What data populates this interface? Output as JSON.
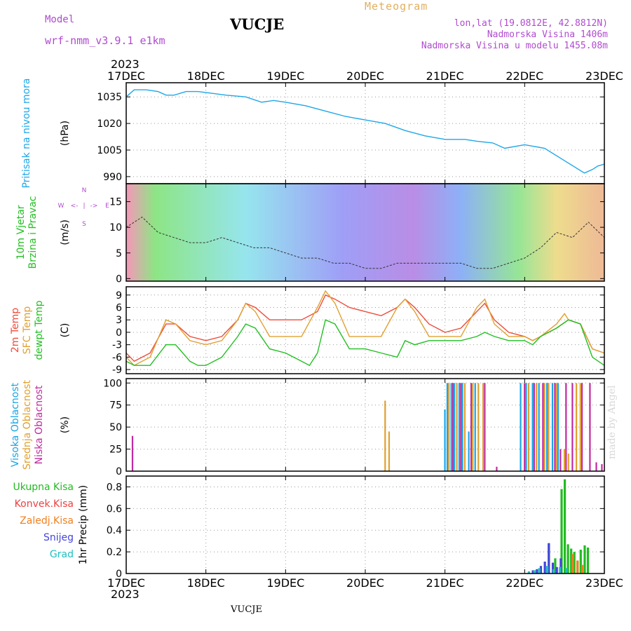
{
  "header": {
    "model_label": "Model",
    "model_name": "wrf-nmm_v3.9.1 e1km",
    "location_title": "VUCJE",
    "product": "Meteogram",
    "lonlat": "lon,lat (19.0812E, 42.8812N)",
    "elevation": "Nadmorska Visina 1406m",
    "model_elevation": "Nadmorska Visina u modelu 1455.08m",
    "year_top": "2023",
    "year_bottom": "2023",
    "footer_location": "VUCJE",
    "credit": "made by Angel"
  },
  "colors": {
    "pressure": "#1ea7e8",
    "temp2m": "#ee4b3b",
    "sfc_temp": "#e0a030",
    "dewpoint": "#22c022",
    "high_cloud": "#19a5e5",
    "mid_cloud": "#e0a030",
    "low_cloud": "#c02aa0",
    "total_precip": "#22bb22",
    "conv_precip": "#ee4040",
    "frozen_precip": "#f08020",
    "snow": "#4444dd",
    "graupel": "#20c0c0"
  },
  "chart_data": [
    {
      "id": "pressure",
      "type": "line",
      "ylabel_lines": [
        "Pritisak na nivou mora"
      ],
      "unit": "(hPa)",
      "yticks": [
        990,
        1005,
        1020,
        1035
      ],
      "ylim": [
        986,
        1043
      ],
      "x_dates": [
        "17DEC",
        "18DEC",
        "19DEC",
        "20DEC",
        "21DEC",
        "22DEC",
        "23DEC"
      ],
      "grid": true,
      "series": [
        {
          "key": "pressure",
          "x": [
            0,
            0.1,
            0.25,
            0.4,
            0.5,
            0.6,
            0.75,
            0.9,
            1.0,
            1.25,
            1.5,
            1.7,
            1.85,
            2.0,
            2.25,
            2.5,
            2.75,
            3.0,
            3.25,
            3.5,
            3.75,
            4.0,
            4.25,
            4.4,
            4.6,
            4.75,
            5.0,
            5.25,
            5.5,
            5.75,
            5.85,
            5.92,
            6.0
          ],
          "y": [
            1035,
            1039,
            1039,
            1038,
            1036,
            1036,
            1038,
            1038,
            1037.5,
            1036,
            1035,
            1032,
            1033,
            1032,
            1030,
            1027,
            1024,
            1022,
            1020,
            1016,
            1013,
            1011,
            1011,
            1010,
            1009,
            1006,
            1008,
            1006,
            999,
            992,
            994,
            996,
            997
          ]
        }
      ]
    },
    {
      "id": "wind",
      "type": "line",
      "ylabel_lines": [
        "10m Vjetar",
        "Brzina i Pravac"
      ],
      "unit": "(m/s)",
      "yticks": [
        0,
        5,
        10,
        15
      ],
      "ylim": [
        -0.5,
        18.5
      ],
      "x_dates": [
        "17DEC",
        "18DEC",
        "19DEC",
        "20DEC",
        "21DEC",
        "22DEC",
        "23DEC"
      ],
      "compass": [
        "N",
        "W",
        "<-",
        "|",
        "->",
        "E",
        "S"
      ],
      "series": [
        {
          "key": "wind_speed",
          "x": [
            0,
            0.2,
            0.4,
            0.6,
            0.8,
            1.0,
            1.2,
            1.4,
            1.6,
            1.8,
            2.0,
            2.2,
            2.4,
            2.6,
            2.8,
            3.0,
            3.2,
            3.4,
            3.6,
            3.8,
            4.0,
            4.2,
            4.4,
            4.6,
            4.8,
            5.0,
            5.2,
            5.4,
            5.6,
            5.8,
            6.0
          ],
          "y": [
            10,
            12,
            9,
            8,
            7,
            7,
            8,
            7,
            6,
            6,
            5,
            4,
            4,
            3,
            3,
            2,
            2,
            3,
            3,
            3,
            3,
            3,
            2,
            2,
            3,
            4,
            6,
            9,
            8,
            11,
            8
          ]
        }
      ]
    },
    {
      "id": "temperature",
      "type": "line",
      "ylabel_lines": [
        "2m Temp",
        "SFC Temp",
        "dewpt Temp"
      ],
      "unit": "(C)",
      "yticks": [
        -9,
        -6,
        -3,
        0,
        3,
        6,
        9
      ],
      "ylim": [
        -10,
        11
      ],
      "x_dates": [
        "17DEC",
        "18DEC",
        "19DEC",
        "20DEC",
        "21DEC",
        "22DEC",
        "23DEC"
      ],
      "grid": true,
      "series": [
        {
          "key": "temp2m",
          "x": [
            0,
            0.1,
            0.3,
            0.5,
            0.62,
            0.8,
            1.0,
            1.2,
            1.4,
            1.5,
            1.62,
            1.8,
            2.0,
            2.2,
            2.4,
            2.5,
            2.62,
            2.8,
            3.0,
            3.2,
            3.4,
            3.5,
            3.62,
            3.8,
            4.0,
            4.2,
            4.4,
            4.5,
            4.62,
            4.8,
            5.0,
            5.1,
            5.2,
            5.4,
            5.55,
            5.7,
            5.85,
            6.0
          ],
          "y": [
            -5,
            -7,
            -5,
            2,
            2,
            -1,
            -2,
            -1,
            3,
            7,
            6,
            3,
            3,
            3,
            5,
            9,
            8,
            6,
            5,
            4,
            6,
            8,
            6,
            2,
            0,
            1,
            5,
            7,
            3,
            0,
            -1,
            -2,
            -1,
            1,
            3,
            2,
            -4,
            -5
          ]
        },
        {
          "key": "sfc_temp",
          "x": [
            0,
            0.1,
            0.3,
            0.5,
            0.62,
            0.8,
            1.0,
            1.2,
            1.4,
            1.5,
            1.62,
            1.8,
            2.0,
            2.2,
            2.4,
            2.5,
            2.62,
            2.8,
            3.0,
            3.2,
            3.4,
            3.5,
            3.62,
            3.8,
            4.0,
            4.2,
            4.4,
            4.5,
            4.62,
            4.8,
            5.0,
            5.1,
            5.2,
            5.4,
            5.5,
            5.55,
            5.7,
            5.85,
            6.0
          ],
          "y": [
            -6,
            -8,
            -6,
            3,
            2,
            -2,
            -3,
            -2,
            3,
            7,
            5,
            -1,
            -1,
            -1,
            6,
            10,
            7,
            -1,
            -1,
            -1,
            6,
            8,
            5,
            -1,
            -1,
            -1,
            6,
            8,
            2,
            -1,
            -1,
            -2,
            -1,
            2,
            4.5,
            3,
            2,
            -4,
            -5
          ]
        },
        {
          "key": "dewpoint",
          "x": [
            0,
            0.1,
            0.3,
            0.5,
            0.62,
            0.8,
            0.9,
            1.0,
            1.2,
            1.4,
            1.5,
            1.62,
            1.8,
            2.0,
            2.2,
            2.3,
            2.4,
            2.5,
            2.62,
            2.8,
            3.0,
            3.2,
            3.4,
            3.5,
            3.62,
            3.8,
            4.0,
            4.2,
            4.4,
            4.5,
            4.62,
            4.8,
            5.0,
            5.1,
            5.2,
            5.4,
            5.55,
            5.7,
            5.85,
            6.0
          ],
          "y": [
            -7,
            -8,
            -8,
            -3,
            -3,
            -7,
            -8,
            -8,
            -6,
            -1,
            2,
            1,
            -4,
            -5,
            -7,
            -8,
            -5,
            3,
            2,
            -4,
            -4,
            -5,
            -6,
            -2,
            -3,
            -2,
            -2,
            -2,
            -1,
            0,
            -1,
            -2,
            -2,
            -3,
            -1,
            1,
            3,
            2,
            -6,
            -8
          ]
        }
      ]
    },
    {
      "id": "clouds",
      "type": "bar",
      "ylabel_lines": [
        "Visoka Oblacnost",
        "Srednja Oblacnost",
        "Niska Oblacnost"
      ],
      "unit": "(%)",
      "yticks": [
        0,
        25,
        50,
        75,
        100
      ],
      "ylim": [
        0,
        105
      ],
      "x_dates": [
        "17DEC",
        "18DEC",
        "19DEC",
        "20DEC",
        "21DEC",
        "22DEC",
        "23DEC"
      ],
      "grid": true,
      "series": [
        {
          "key": "low_cloud",
          "x": [
            0.08,
            4.1,
            4.2,
            4.33,
            4.5,
            4.65,
            5.0,
            5.12,
            5.23,
            5.3,
            5.38,
            5.45,
            5.52,
            5.6,
            5.72,
            5.82,
            5.9,
            5.97
          ],
          "y": [
            40,
            100,
            100,
            100,
            100,
            5,
            100,
            100,
            100,
            100,
            100,
            25,
            100,
            100,
            100,
            100,
            10,
            8
          ]
        },
        {
          "key": "mid_cloud",
          "x": [
            3.25,
            3.3,
            4.05,
            4.15,
            4.25,
            4.35,
            4.42,
            4.48,
            5.05,
            5.15,
            5.25,
            5.3,
            5.4,
            5.5,
            5.55,
            5.65,
            5.7
          ],
          "y": [
            80,
            45,
            100,
            100,
            100,
            100,
            100,
            100,
            100,
            100,
            100,
            100,
            100,
            25,
            20,
            100,
            100
          ]
        },
        {
          "key": "high_cloud",
          "x": [
            4.0,
            4.03,
            4.08,
            4.12,
            4.18,
            4.22,
            4.3,
            4.38,
            4.95,
            5.02,
            5.1,
            5.18,
            5.28,
            5.35,
            5.42
          ],
          "y": [
            70,
            100,
            100,
            100,
            100,
            100,
            45,
            100,
            100,
            100,
            100,
            100,
            100,
            100,
            100
          ]
        }
      ]
    },
    {
      "id": "precip",
      "type": "bar",
      "legend": [
        "Ukupna Kisa",
        "Konvek.Kisa",
        "Zaledj.Kisa",
        "Snijeg",
        "Grad"
      ],
      "ylabel_lines": [
        "1hr Precip (mm)"
      ],
      "yticks": [
        0,
        0.2,
        0.4,
        0.6,
        0.8
      ],
      "ylim": [
        0,
        0.9
      ],
      "x_dates": [
        "17DEC",
        "18DEC",
        "19DEC",
        "20DEC",
        "21DEC",
        "22DEC",
        "23DEC"
      ],
      "grid": true,
      "series": [
        {
          "key": "total_precip",
          "x": [
            5.3,
            5.38,
            5.46,
            5.5,
            5.54,
            5.58,
            5.62,
            5.66,
            5.7,
            5.75,
            5.79
          ],
          "y": [
            0.28,
            0.14,
            0.78,
            0.87,
            0.27,
            0.23,
            0.2,
            0.12,
            0.22,
            0.26,
            0.24
          ]
        },
        {
          "key": "snow",
          "x": [
            5.1,
            5.15,
            5.2,
            5.25,
            5.3,
            5.35,
            5.4,
            5.45
          ],
          "y": [
            0.03,
            0.04,
            0.07,
            0.11,
            0.28,
            0.1,
            0.06,
            0.14
          ]
        },
        {
          "key": "frozen_precip",
          "x": [
            5.6,
            5.66,
            5.72
          ],
          "y": [
            0.18,
            0.12,
            0.08
          ]
        },
        {
          "key": "graupel",
          "x": [
            5.05,
            5.12,
            5.18,
            5.28,
            5.36,
            5.44,
            5.52
          ],
          "y": [
            0.02,
            0.03,
            0.05,
            0.07,
            0.04,
            0.06,
            0.05
          ]
        }
      ]
    }
  ]
}
